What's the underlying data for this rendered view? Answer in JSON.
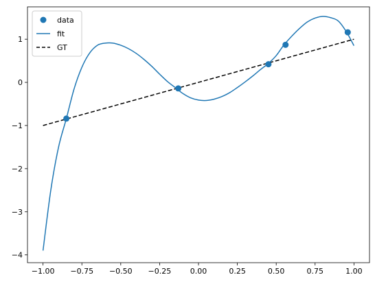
{
  "chart_data": {
    "type": "scatter",
    "title": "",
    "xlabel": "",
    "ylabel": "",
    "xlim": [
      -1.1,
      1.1
    ],
    "ylim": [
      -4.18,
      1.75
    ],
    "grid": false,
    "legend_position": "top-left",
    "xticks": [
      -1.0,
      -0.75,
      -0.5,
      -0.25,
      0.0,
      0.25,
      0.5,
      0.75,
      1.0
    ],
    "xtick_labels": [
      "−1.00",
      "−0.75",
      "−0.50",
      "−0.25",
      "0.00",
      "0.25",
      "0.50",
      "0.75",
      "1.00"
    ],
    "yticks": [
      -4,
      -3,
      -2,
      -1,
      0,
      1
    ],
    "ytick_labels": [
      "−4",
      "−3",
      "−2",
      "−1",
      "0",
      "1"
    ],
    "series": [
      {
        "name": "data",
        "type": "scatter",
        "color": "#1f77b4",
        "x": [
          -0.85,
          -0.13,
          0.45,
          0.56,
          0.96
        ],
        "y": [
          -0.84,
          -0.14,
          0.42,
          0.87,
          1.16
        ]
      },
      {
        "name": "fit",
        "type": "line",
        "color": "#1f77b4",
        "x": [
          -1.0,
          -0.95,
          -0.9,
          -0.85,
          -0.8,
          -0.75,
          -0.7,
          -0.65,
          -0.6,
          -0.55,
          -0.5,
          -0.45,
          -0.4,
          -0.35,
          -0.3,
          -0.25,
          -0.2,
          -0.15,
          -0.1,
          -0.05,
          0.0,
          0.05,
          0.1,
          0.15,
          0.2,
          0.25,
          0.3,
          0.35,
          0.4,
          0.45,
          0.5,
          0.55,
          0.6,
          0.65,
          0.7,
          0.75,
          0.8,
          0.85,
          0.9,
          0.95,
          1.0
        ],
        "y": [
          -3.9,
          -2.5,
          -1.5,
          -0.84,
          -0.15,
          0.35,
          0.68,
          0.86,
          0.91,
          0.91,
          0.86,
          0.78,
          0.67,
          0.53,
          0.37,
          0.19,
          0.02,
          -0.12,
          -0.26,
          -0.36,
          -0.41,
          -0.42,
          -0.39,
          -0.33,
          -0.24,
          -0.12,
          0.01,
          0.15,
          0.3,
          0.44,
          0.62,
          0.87,
          1.07,
          1.25,
          1.4,
          1.49,
          1.53,
          1.5,
          1.42,
          1.18,
          0.85
        ]
      },
      {
        "name": "GT",
        "type": "line",
        "dash": "dashed",
        "color": "#000000",
        "x": [
          -1.0,
          1.0
        ],
        "y": [
          -1.0,
          1.0
        ]
      }
    ]
  }
}
